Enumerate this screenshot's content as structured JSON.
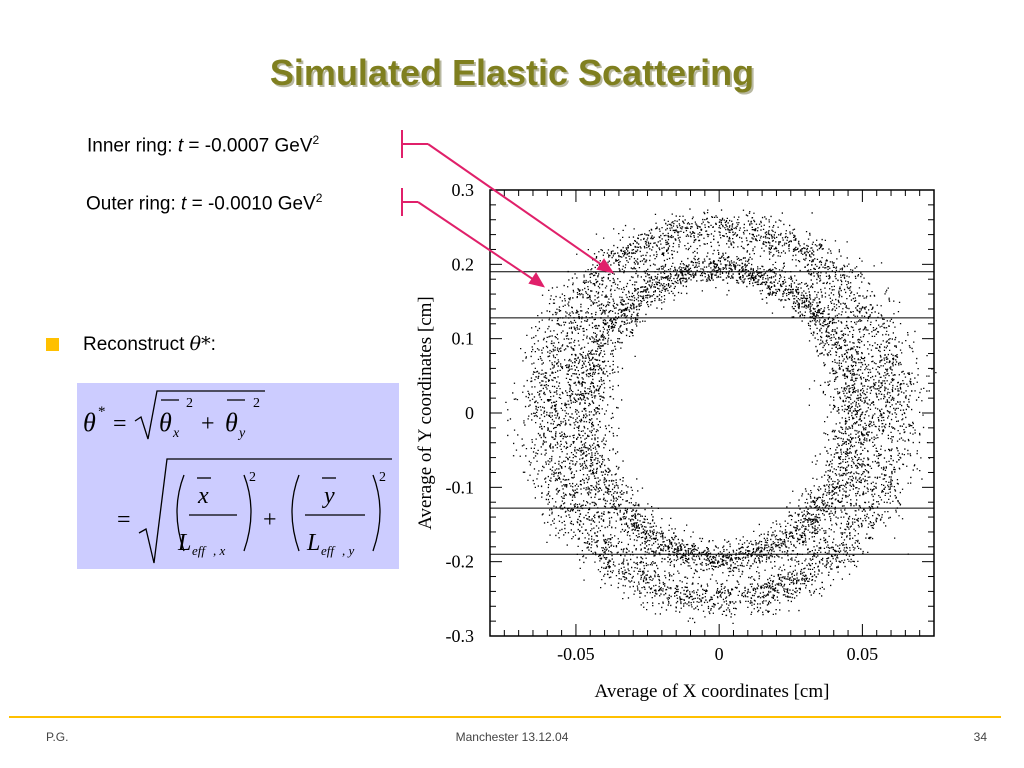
{
  "slide": {
    "title": "Simulated Elastic Scattering",
    "inner_label": {
      "prefix": "Inner ring: ",
      "var": "t",
      "value": " = -0.0007 GeV",
      "sup": "2"
    },
    "outer_label": {
      "prefix": "Outer ring: ",
      "var": "t",
      "value": " = -0.0010 GeV",
      "sup": "2"
    },
    "bullet": {
      "text": "Reconstruct ",
      "symbol": "θ*",
      "suffix": ":"
    },
    "footer": {
      "left": "P.G.",
      "center": "Manchester 13.12.04",
      "right": "34"
    },
    "colors": {
      "title": "#7f7f1f",
      "accent": "#ffc000",
      "arrow": "#e0206a",
      "formula_bg": "#ccccff"
    }
  },
  "chart_data": {
    "type": "scatter",
    "xlabel": "Average of X coordinates  [cm]",
    "ylabel": "Average of Y coordinates  [cm]",
    "xlim": [
      -0.08,
      0.075
    ],
    "ylim": [
      -0.3,
      0.3
    ],
    "x_ticks": [
      "-0.05",
      "0",
      "0.05"
    ],
    "y_ticks": [
      "0.3",
      "0.2",
      "0.1",
      "0",
      "-0.1",
      "-0.2",
      "-0.3"
    ],
    "x_tick_values": [
      -0.05,
      0,
      0.05
    ],
    "y_tick_values": [
      0.3,
      0.2,
      0.1,
      0,
      -0.1,
      -0.2,
      -0.3
    ],
    "rings": [
      {
        "name": "Inner ring",
        "center": [
          0.0,
          0.0
        ],
        "rx": 0.047,
        "ry": 0.195,
        "spread": 0.0045
      },
      {
        "name": "Outer ring",
        "center": [
          0.0,
          0.0
        ],
        "rx": 0.0605,
        "ry": 0.25,
        "spread": 0.0055
      }
    ],
    "horizontal_lines_y": [
      0.19,
      0.128,
      -0.128,
      -0.19
    ],
    "grid": false
  }
}
